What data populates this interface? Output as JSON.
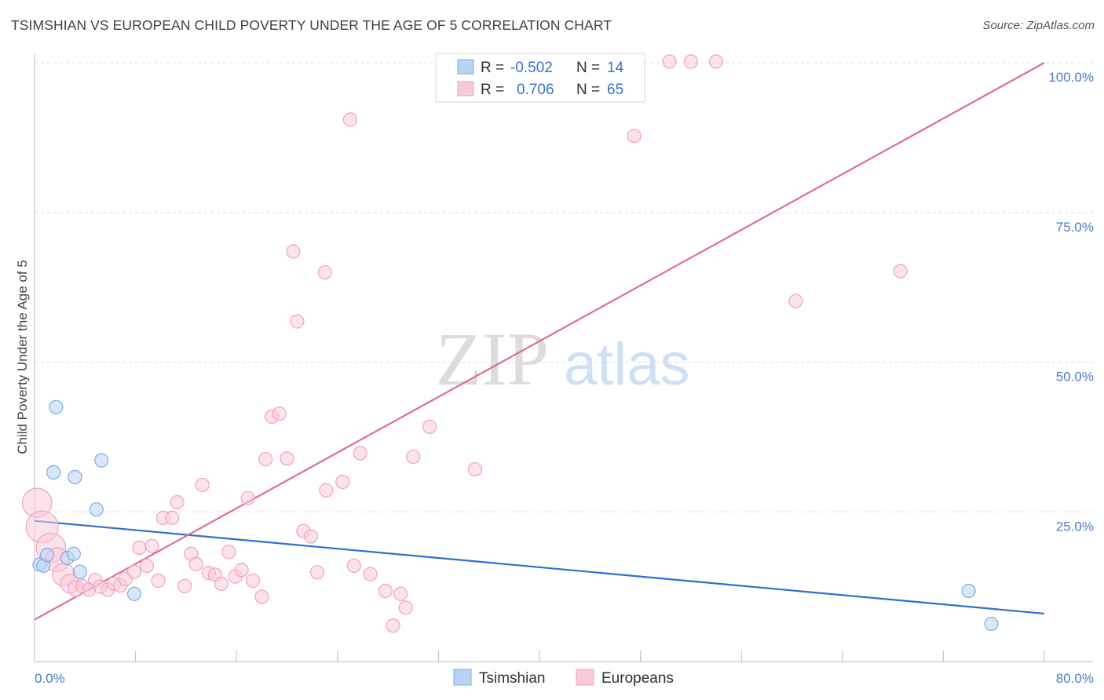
{
  "header": {
    "title": "TSIMSHIAN VS EUROPEAN CHILD POVERTY UNDER THE AGE OF 5 CORRELATION CHART",
    "source": "Source: ZipAtlas.com"
  },
  "watermark": {
    "zip": "ZIP",
    "atlas": "atlas"
  },
  "chart_data": {
    "type": "scatter",
    "title": "TSIMSHIAN VS EUROPEAN CHILD POVERTY UNDER THE AGE OF 5 CORRELATION CHART",
    "xlabel": "",
    "ylabel": "Child Poverty Under the Age of 5",
    "xlim": [
      0,
      80
    ],
    "ylim": [
      0,
      102
    ],
    "x_tick_labels": [
      "0.0%",
      "80.0%"
    ],
    "y_ticks": [
      25,
      50,
      75,
      100
    ],
    "y_tick_labels": [
      "25.0%",
      "50.0%",
      "75.0%",
      "100.0%"
    ],
    "grid": true,
    "legend": {
      "stats": [
        {
          "r_label": "R =",
          "r_value": "-0.502",
          "n_label": "N =",
          "n_value": "14"
        },
        {
          "r_label": "R =",
          "r_value": "0.706",
          "n_label": "N =",
          "n_value": "65"
        }
      ]
    },
    "series": [
      {
        "name": "Tsimshian",
        "color": "#7aaee6",
        "fill": "#b9d3f3",
        "line_color": "#2f6fcb",
        "trend": {
          "x0": 0,
          "y0": 23.5,
          "x1": 80,
          "y1": 8.0
        },
        "points": [
          {
            "x": 0.4,
            "y": 16.2,
            "s": 1
          },
          {
            "x": 0.7,
            "y": 16.0,
            "s": 1
          },
          {
            "x": 1.0,
            "y": 17.8,
            "s": 1
          },
          {
            "x": 1.5,
            "y": 31.6,
            "s": 1
          },
          {
            "x": 1.7,
            "y": 42.5,
            "s": 1
          },
          {
            "x": 2.6,
            "y": 17.3,
            "s": 1
          },
          {
            "x": 3.1,
            "y": 18.0,
            "s": 1
          },
          {
            "x": 3.2,
            "y": 30.8,
            "s": 1
          },
          {
            "x": 3.6,
            "y": 15.0,
            "s": 1
          },
          {
            "x": 4.9,
            "y": 25.4,
            "s": 1
          },
          {
            "x": 5.3,
            "y": 33.6,
            "s": 1
          },
          {
            "x": 7.9,
            "y": 11.3,
            "s": 1
          },
          {
            "x": 74.0,
            "y": 11.8,
            "s": 1
          },
          {
            "x": 75.8,
            "y": 6.3,
            "s": 1
          }
        ]
      },
      {
        "name": "Europeans",
        "color": "#f1a3bd",
        "fill": "#f9cadb",
        "line_color": "#e36b94",
        "trend": {
          "x0": 0,
          "y0": 7.0,
          "x1": 80,
          "y1": 100.0
        },
        "points": [
          {
            "x": 0.2,
            "y": 26.5,
            "s": 2.2
          },
          {
            "x": 0.6,
            "y": 22.5,
            "s": 2.4
          },
          {
            "x": 1.3,
            "y": 19.0,
            "s": 2.2
          },
          {
            "x": 1.8,
            "y": 17.0,
            "s": 1.8
          },
          {
            "x": 2.3,
            "y": 14.5,
            "s": 1.7
          },
          {
            "x": 2.8,
            "y": 13.0,
            "s": 1.4
          },
          {
            "x": 3.3,
            "y": 12.2,
            "s": 1.2
          },
          {
            "x": 3.8,
            "y": 12.6,
            "s": 1
          },
          {
            "x": 4.3,
            "y": 12.0,
            "s": 1
          },
          {
            "x": 4.8,
            "y": 13.6,
            "s": 1
          },
          {
            "x": 5.2,
            "y": 12.5,
            "s": 1
          },
          {
            "x": 5.8,
            "y": 12.0,
            "s": 1
          },
          {
            "x": 6.3,
            "y": 13.0,
            "s": 1
          },
          {
            "x": 6.8,
            "y": 12.7,
            "s": 1
          },
          {
            "x": 7.2,
            "y": 13.8,
            "s": 1
          },
          {
            "x": 7.9,
            "y": 15.0,
            "s": 1
          },
          {
            "x": 8.3,
            "y": 19.0,
            "s": 1
          },
          {
            "x": 8.9,
            "y": 16.0,
            "s": 1
          },
          {
            "x": 9.3,
            "y": 19.3,
            "s": 1
          },
          {
            "x": 9.8,
            "y": 13.5,
            "s": 1
          },
          {
            "x": 10.2,
            "y": 24.0,
            "s": 1
          },
          {
            "x": 10.9,
            "y": 24.0,
            "s": 1
          },
          {
            "x": 11.3,
            "y": 26.6,
            "s": 1
          },
          {
            "x": 11.9,
            "y": 12.6,
            "s": 1
          },
          {
            "x": 12.4,
            "y": 18.0,
            "s": 1
          },
          {
            "x": 12.8,
            "y": 16.3,
            "s": 1
          },
          {
            "x": 13.3,
            "y": 29.5,
            "s": 1
          },
          {
            "x": 13.8,
            "y": 14.8,
            "s": 1
          },
          {
            "x": 14.3,
            "y": 14.5,
            "s": 1
          },
          {
            "x": 14.8,
            "y": 13.0,
            "s": 1
          },
          {
            "x": 15.4,
            "y": 18.3,
            "s": 1
          },
          {
            "x": 15.9,
            "y": 14.2,
            "s": 1
          },
          {
            "x": 16.4,
            "y": 15.3,
            "s": 1
          },
          {
            "x": 16.9,
            "y": 27.3,
            "s": 1
          },
          {
            "x": 17.3,
            "y": 13.5,
            "s": 1
          },
          {
            "x": 18.0,
            "y": 10.8,
            "s": 1
          },
          {
            "x": 18.3,
            "y": 33.8,
            "s": 1
          },
          {
            "x": 18.8,
            "y": 40.9,
            "s": 1
          },
          {
            "x": 19.4,
            "y": 41.4,
            "s": 1
          },
          {
            "x": 20.0,
            "y": 33.9,
            "s": 1
          },
          {
            "x": 20.5,
            "y": 68.5,
            "s": 1
          },
          {
            "x": 20.8,
            "y": 56.8,
            "s": 1
          },
          {
            "x": 21.3,
            "y": 21.8,
            "s": 1
          },
          {
            "x": 21.9,
            "y": 20.9,
            "s": 1
          },
          {
            "x": 22.4,
            "y": 14.9,
            "s": 1
          },
          {
            "x": 23.0,
            "y": 65.0,
            "s": 1
          },
          {
            "x": 23.1,
            "y": 28.6,
            "s": 1
          },
          {
            "x": 24.4,
            "y": 30.0,
            "s": 1
          },
          {
            "x": 25.0,
            "y": 90.5,
            "s": 1
          },
          {
            "x": 25.3,
            "y": 16.0,
            "s": 1
          },
          {
            "x": 25.8,
            "y": 34.8,
            "s": 1
          },
          {
            "x": 26.6,
            "y": 14.6,
            "s": 1
          },
          {
            "x": 27.8,
            "y": 11.8,
            "s": 1
          },
          {
            "x": 28.4,
            "y": 6.0,
            "s": 1
          },
          {
            "x": 29.0,
            "y": 11.3,
            "s": 1
          },
          {
            "x": 29.4,
            "y": 9.0,
            "s": 1
          },
          {
            "x": 30.0,
            "y": 34.2,
            "s": 1
          },
          {
            "x": 31.3,
            "y": 39.2,
            "s": 1
          },
          {
            "x": 34.9,
            "y": 32.1,
            "s": 1
          },
          {
            "x": 47.5,
            "y": 87.8,
            "s": 1
          },
          {
            "x": 50.3,
            "y": 100.2,
            "s": 1
          },
          {
            "x": 52.0,
            "y": 100.2,
            "s": 1
          },
          {
            "x": 54.0,
            "y": 100.2,
            "s": 1
          },
          {
            "x": 60.3,
            "y": 60.2,
            "s": 1
          },
          {
            "x": 68.6,
            "y": 65.2,
            "s": 1
          }
        ]
      }
    ]
  }
}
